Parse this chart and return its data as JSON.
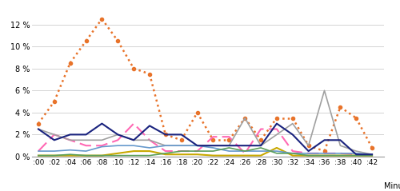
{
  "x_labels": [
    ":00",
    ":02",
    ":04",
    ":06",
    ":08",
    ":10",
    ":12",
    ":14",
    ":16",
    ":18",
    ":20",
    ":22",
    ":24",
    ":26",
    ":28",
    ":30",
    ":32",
    ":34",
    ":36",
    ":38",
    ":40",
    ":42"
  ],
  "x_values": [
    0,
    2,
    4,
    6,
    8,
    10,
    12,
    14,
    16,
    18,
    20,
    22,
    24,
    26,
    28,
    30,
    32,
    34,
    36,
    38,
    40,
    42
  ],
  "joy": [
    3.0,
    5.0,
    8.5,
    10.5,
    12.5,
    10.5,
    8.0,
    7.5,
    2.0,
    1.5,
    4.0,
    1.5,
    1.5,
    3.5,
    1.5,
    3.5,
    3.5,
    1.0,
    0.5,
    4.5,
    3.5,
    0.8
  ],
  "anger": [
    0.5,
    2.0,
    1.5,
    1.0,
    1.0,
    1.5,
    3.0,
    1.5,
    0.5,
    0.5,
    0.5,
    1.8,
    1.8,
    0.3,
    2.5,
    2.5,
    0.5,
    0.3,
    0.3,
    0.3,
    0.2,
    0.2
  ],
  "contempt": [
    2.5,
    2.0,
    1.5,
    1.5,
    1.5,
    2.0,
    1.5,
    1.5,
    1.0,
    1.0,
    1.0,
    1.0,
    1.0,
    3.5,
    1.0,
    2.0,
    3.0,
    1.0,
    6.0,
    1.0,
    0.5,
    0.2
  ],
  "disgust": [
    0.1,
    0.1,
    0.1,
    0.1,
    0.1,
    0.3,
    0.5,
    0.5,
    0.2,
    0.2,
    0.2,
    0.1,
    0.1,
    0.1,
    0.1,
    0.8,
    0.1,
    0.1,
    0.1,
    0.1,
    0.1,
    0.1
  ],
  "fear": [
    0.5,
    0.5,
    0.6,
    0.5,
    0.9,
    1.0,
    1.0,
    0.8,
    1.0,
    1.0,
    1.0,
    0.8,
    0.5,
    0.5,
    0.5,
    0.5,
    0.3,
    0.3,
    0.3,
    0.3,
    0.3,
    0.2
  ],
  "sadness": [
    0.1,
    0.1,
    0.2,
    0.1,
    0.1,
    0.1,
    0.1,
    0.1,
    0.3,
    0.5,
    0.5,
    0.5,
    0.8,
    0.5,
    0.8,
    0.3,
    0.3,
    0.1,
    0.1,
    0.1,
    0.1,
    0.1
  ],
  "surprise": [
    2.5,
    1.5,
    2.0,
    2.0,
    3.0,
    2.0,
    1.5,
    2.8,
    2.0,
    2.0,
    1.0,
    1.0,
    1.0,
    1.0,
    1.0,
    3.0,
    2.0,
    0.5,
    1.5,
    1.5,
    0.2,
    0.2
  ],
  "joy_color": "#E8732A",
  "anger_color": "#FF69B4",
  "contempt_color": "#A0A0A0",
  "disgust_color": "#C8A800",
  "fear_color": "#6699CC",
  "sadness_color": "#5A9E5A",
  "surprise_color": "#1A237E",
  "ylim": [
    0,
    13
  ],
  "yticks": [
    0,
    2,
    4,
    6,
    8,
    10,
    12
  ],
  "background_color": "#ffffff",
  "grid_color": "#CCCCCC"
}
